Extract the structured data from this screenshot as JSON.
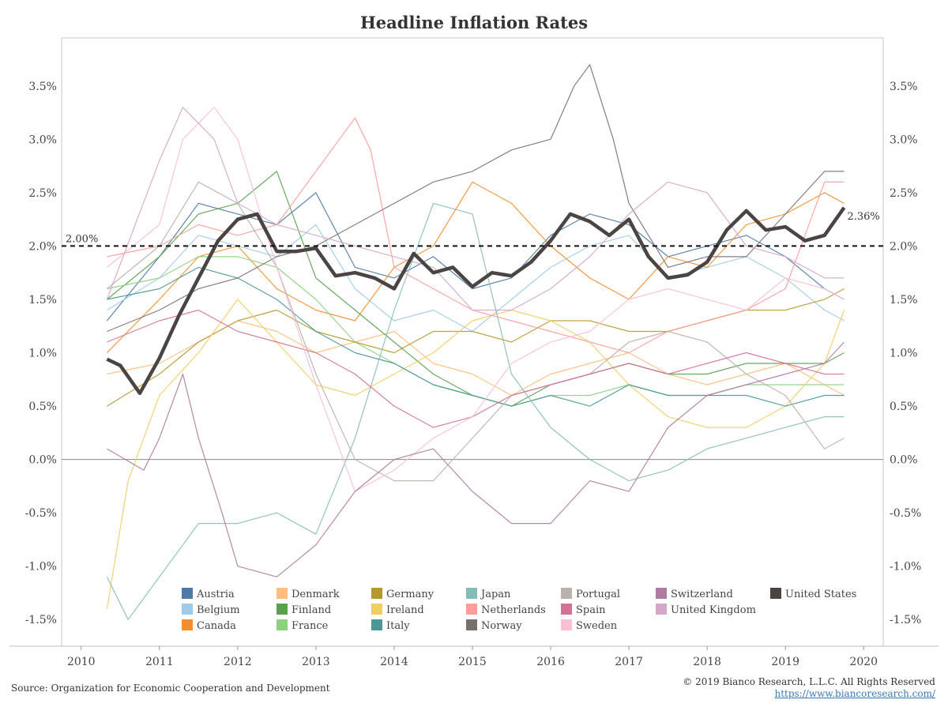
{
  "page": {
    "title": "Headline Inflation Rates",
    "source": "Source: Organization for Economic Cooperation and Development",
    "copyright": "© 2019 Bianco Research, L.L.C. All Rights Reserved",
    "url": "https://www.biancoresearch.com/"
  },
  "chart_data": {
    "type": "line",
    "title": "Headline Inflation Rates",
    "xlabel": "",
    "ylabel": "",
    "x_ticks": [
      "2010",
      "2011",
      "2012",
      "2013",
      "2014",
      "2015",
      "2016",
      "2017",
      "2018",
      "2019",
      "2020"
    ],
    "y_ticks": [
      "3.5%",
      "3.0%",
      "2.5%",
      "2.0%",
      "1.5%",
      "1.0%",
      "0.5%",
      "0.0%",
      "-0.5%",
      "-1.0%",
      "-1.5%"
    ],
    "xlim": [
      2009.75,
      2020.25
    ],
    "ylim": [
      -1.75,
      3.95
    ],
    "y_axis_duplicated_on_right": true,
    "reference_line": {
      "y": 2.0,
      "label": "2.00%",
      "style": "dashed"
    },
    "zero_line": {
      "y": 0.0
    },
    "end_label": "2.36%",
    "legend_position": "bottom",
    "legend": [
      "Austria",
      "Belgium",
      "Canada",
      "Denmark",
      "Finland",
      "France",
      "Germany",
      "Ireland",
      "Italy",
      "Japan",
      "Netherlands",
      "Norway",
      "Portugal",
      "Spain",
      "Sweden",
      "Switzerland",
      "United Kingdom",
      "United States"
    ],
    "series": [
      {
        "name": "Austria",
        "color": "#4e79a7",
        "x": [
          2010.33,
          2011.0,
          2011.5,
          2012.0,
          2012.5,
          2013.0,
          2013.5,
          2014.0,
          2014.5,
          2015.0,
          2015.5,
          2016.0,
          2016.5,
          2017.0,
          2017.5,
          2018.0,
          2018.5,
          2019.0,
          2019.5,
          2019.75
        ],
        "y": [
          1.3,
          1.9,
          2.4,
          2.3,
          2.2,
          2.5,
          1.8,
          1.7,
          1.9,
          1.6,
          1.7,
          2.1,
          2.3,
          2.2,
          1.9,
          2.0,
          2.1,
          1.9,
          1.6,
          1.5
        ]
      },
      {
        "name": "Belgium",
        "color": "#a0cbe8",
        "x": [
          2010.33,
          2011.0,
          2011.5,
          2012.0,
          2012.5,
          2013.0,
          2013.5,
          2014.0,
          2014.5,
          2015.0,
          2015.5,
          2016.0,
          2016.5,
          2017.0,
          2017.5,
          2018.0,
          2018.5,
          2019.0,
          2019.5,
          2019.75
        ],
        "y": [
          1.4,
          1.7,
          2.1,
          2.0,
          1.9,
          2.2,
          1.6,
          1.3,
          1.4,
          1.2,
          1.5,
          1.8,
          2.0,
          2.1,
          1.7,
          1.8,
          1.9,
          1.7,
          1.4,
          1.3
        ]
      },
      {
        "name": "Canada",
        "color": "#f28e2b",
        "x": [
          2010.33,
          2011.0,
          2011.5,
          2012.0,
          2012.5,
          2013.0,
          2013.5,
          2014.0,
          2014.5,
          2015.0,
          2015.5,
          2016.0,
          2016.5,
          2017.0,
          2017.5,
          2018.0,
          2018.5,
          2019.0,
          2019.5,
          2019.75
        ],
        "y": [
          1.0,
          1.5,
          1.9,
          2.0,
          1.6,
          1.4,
          1.3,
          1.8,
          2.0,
          2.6,
          2.4,
          2.0,
          1.7,
          1.5,
          1.9,
          1.8,
          2.2,
          2.3,
          2.5,
          2.4
        ]
      },
      {
        "name": "Denmark",
        "color": "#ffbe7d",
        "x": [
          2010.33,
          2011.0,
          2011.5,
          2012.0,
          2012.5,
          2013.0,
          2013.5,
          2014.0,
          2014.5,
          2015.0,
          2015.5,
          2016.0,
          2016.5,
          2017.0,
          2017.5,
          2018.0,
          2018.5,
          2019.0,
          2019.5,
          2019.75
        ],
        "y": [
          0.8,
          0.9,
          1.1,
          1.3,
          1.2,
          1.0,
          1.1,
          1.2,
          0.9,
          0.8,
          0.6,
          0.8,
          0.9,
          1.0,
          0.8,
          0.7,
          0.8,
          0.9,
          0.7,
          0.6
        ]
      },
      {
        "name": "Finland",
        "color": "#59a14f",
        "x": [
          2010.33,
          2011.0,
          2011.5,
          2012.0,
          2012.5,
          2013.0,
          2013.5,
          2014.0,
          2014.5,
          2015.0,
          2015.5,
          2016.0,
          2016.5,
          2017.0,
          2017.5,
          2018.0,
          2018.5,
          2019.0,
          2019.5,
          2019.75
        ],
        "y": [
          1.5,
          1.9,
          2.3,
          2.4,
          2.7,
          1.7,
          1.4,
          1.1,
          0.8,
          0.6,
          0.5,
          0.7,
          0.8,
          0.9,
          0.8,
          0.8,
          0.9,
          0.9,
          0.9,
          1.0
        ]
      },
      {
        "name": "France",
        "color": "#8cd17d",
        "x": [
          2010.33,
          2011.0,
          2011.5,
          2012.0,
          2012.5,
          2013.0,
          2013.5,
          2014.0,
          2014.5,
          2015.0,
          2015.5,
          2016.0,
          2016.5,
          2017.0,
          2017.5,
          2018.0,
          2018.5,
          2019.0,
          2019.5,
          2019.75
        ],
        "y": [
          1.6,
          1.7,
          1.9,
          1.9,
          1.8,
          1.5,
          1.1,
          0.9,
          0.7,
          0.6,
          0.5,
          0.6,
          0.6,
          0.7,
          0.6,
          0.6,
          0.7,
          0.7,
          0.7,
          0.7
        ]
      },
      {
        "name": "Germany",
        "color": "#b6992d",
        "x": [
          2010.33,
          2011.0,
          2011.5,
          2012.0,
          2012.5,
          2013.0,
          2013.5,
          2014.0,
          2014.5,
          2015.0,
          2015.5,
          2016.0,
          2016.5,
          2017.0,
          2017.5,
          2018.0,
          2018.5,
          2019.0,
          2019.5,
          2019.75
        ],
        "y": [
          0.5,
          0.8,
          1.1,
          1.3,
          1.4,
          1.2,
          1.1,
          1.0,
          1.2,
          1.2,
          1.1,
          1.3,
          1.3,
          1.2,
          1.2,
          1.3,
          1.4,
          1.4,
          1.5,
          1.6
        ]
      },
      {
        "name": "Ireland",
        "color": "#f1ce63",
        "x": [
          2010.33,
          2010.6,
          2011.0,
          2011.5,
          2012.0,
          2012.5,
          2013.0,
          2013.5,
          2014.0,
          2014.5,
          2015.0,
          2015.5,
          2016.0,
          2016.5,
          2017.0,
          2017.5,
          2018.0,
          2018.5,
          2019.0,
          2019.5,
          2019.75
        ],
        "y": [
          -1.4,
          -0.2,
          0.6,
          1.0,
          1.5,
          1.1,
          0.7,
          0.6,
          0.8,
          1.0,
          1.3,
          1.4,
          1.3,
          1.1,
          0.7,
          0.4,
          0.3,
          0.3,
          0.5,
          0.9,
          1.4
        ]
      },
      {
        "name": "Italy",
        "color": "#499894",
        "x": [
          2010.33,
          2011.0,
          2011.5,
          2012.0,
          2012.5,
          2013.0,
          2013.5,
          2014.0,
          2014.5,
          2015.0,
          2015.5,
          2016.0,
          2016.5,
          2017.0,
          2017.5,
          2018.0,
          2018.5,
          2019.0,
          2019.5,
          2019.75
        ],
        "y": [
          1.5,
          1.6,
          1.8,
          1.7,
          1.5,
          1.2,
          1.0,
          0.9,
          0.7,
          0.6,
          0.5,
          0.6,
          0.5,
          0.7,
          0.6,
          0.6,
          0.6,
          0.5,
          0.6,
          0.6
        ]
      },
      {
        "name": "Japan",
        "color": "#86bcb6",
        "x": [
          2010.33,
          2010.6,
          2011.0,
          2011.5,
          2012.0,
          2012.5,
          2013.0,
          2013.5,
          2014.0,
          2014.5,
          2015.0,
          2015.5,
          2016.0,
          2016.5,
          2017.0,
          2017.5,
          2018.0,
          2018.5,
          2019.0,
          2019.5,
          2019.75
        ],
        "y": [
          -1.1,
          -1.5,
          -1.1,
          -0.6,
          -0.6,
          -0.5,
          -0.7,
          0.2,
          1.4,
          2.4,
          2.3,
          0.8,
          0.3,
          0.0,
          -0.2,
          -0.1,
          0.1,
          0.2,
          0.3,
          0.4,
          0.4
        ]
      },
      {
        "name": "Netherlands",
        "color": "#ff9d9a",
        "x": [
          2010.33,
          2011.0,
          2011.5,
          2012.0,
          2012.5,
          2013.0,
          2013.5,
          2013.7,
          2014.0,
          2014.5,
          2015.0,
          2015.5,
          2016.0,
          2016.5,
          2017.0,
          2017.5,
          2018.0,
          2018.5,
          2019.0,
          2019.5,
          2019.75
        ],
        "y": [
          1.9,
          2.0,
          2.2,
          2.1,
          2.2,
          2.7,
          3.2,
          2.9,
          1.8,
          1.6,
          1.4,
          1.3,
          1.2,
          1.1,
          1.0,
          1.2,
          1.3,
          1.4,
          1.6,
          2.6,
          2.6
        ]
      },
      {
        "name": "Norway",
        "color": "#79706e",
        "x": [
          2010.33,
          2011.0,
          2011.5,
          2012.0,
          2012.5,
          2013.0,
          2013.5,
          2014.0,
          2014.5,
          2015.0,
          2015.5,
          2016.0,
          2016.3,
          2016.5,
          2016.8,
          2017.0,
          2017.5,
          2018.0,
          2018.5,
          2019.0,
          2019.5,
          2019.75
        ],
        "y": [
          1.2,
          1.4,
          1.6,
          1.7,
          1.9,
          2.0,
          2.2,
          2.4,
          2.6,
          2.7,
          2.9,
          3.0,
          3.5,
          3.7,
          3.0,
          2.4,
          1.8,
          1.9,
          1.9,
          2.3,
          2.7,
          2.7
        ]
      },
      {
        "name": "Portugal",
        "color": "#bab0ac",
        "x": [
          2010.33,
          2011.0,
          2011.5,
          2012.0,
          2012.5,
          2013.0,
          2013.5,
          2014.0,
          2014.5,
          2015.0,
          2015.5,
          2016.0,
          2016.5,
          2017.0,
          2017.5,
          2018.0,
          2018.5,
          2019.0,
          2019.5,
          2019.75
        ],
        "y": [
          1.6,
          2.0,
          2.6,
          2.4,
          1.8,
          0.8,
          0.0,
          -0.2,
          -0.2,
          0.2,
          0.6,
          0.7,
          0.8,
          1.1,
          1.2,
          1.1,
          0.8,
          0.6,
          0.1,
          0.2
        ]
      },
      {
        "name": "Spain",
        "color": "#d37295",
        "x": [
          2010.33,
          2011.0,
          2011.5,
          2012.0,
          2012.5,
          2013.0,
          2013.5,
          2014.0,
          2014.5,
          2015.0,
          2015.5,
          2016.0,
          2016.5,
          2017.0,
          2017.5,
          2018.0,
          2018.5,
          2019.0,
          2019.5,
          2019.75
        ],
        "y": [
          1.1,
          1.3,
          1.4,
          1.2,
          1.1,
          1.0,
          0.8,
          0.5,
          0.3,
          0.4,
          0.6,
          0.7,
          0.8,
          0.9,
          0.8,
          0.9,
          1.0,
          0.9,
          0.8,
          0.8
        ]
      },
      {
        "name": "Sweden",
        "color": "#fabfd2",
        "x": [
          2010.33,
          2011.0,
          2011.3,
          2011.7,
          2012.0,
          2012.5,
          2013.0,
          2013.5,
          2014.0,
          2014.5,
          2015.0,
          2015.5,
          2016.0,
          2016.5,
          2017.0,
          2017.5,
          2018.0,
          2018.5,
          2019.0,
          2019.5,
          2019.75
        ],
        "y": [
          1.8,
          2.2,
          3.0,
          3.3,
          3.0,
          1.8,
          0.7,
          -0.3,
          -0.1,
          0.2,
          0.4,
          0.9,
          1.1,
          1.2,
          1.5,
          1.6,
          1.5,
          1.4,
          1.7,
          1.6,
          1.5
        ]
      },
      {
        "name": "Switzerland",
        "color": "#b07aa1",
        "x": [
          2010.33,
          2010.8,
          2011.0,
          2011.3,
          2011.5,
          2011.8,
          2012.0,
          2012.5,
          2013.0,
          2013.5,
          2014.0,
          2014.5,
          2015.0,
          2015.5,
          2016.0,
          2016.5,
          2017.0,
          2017.5,
          2018.0,
          2018.5,
          2019.0,
          2019.5,
          2019.75
        ],
        "y": [
          0.1,
          -0.1,
          0.2,
          0.8,
          0.2,
          -0.5,
          -1.0,
          -1.1,
          -0.8,
          -0.3,
          0.0,
          0.1,
          -0.3,
          -0.6,
          -0.6,
          -0.2,
          -0.3,
          0.3,
          0.6,
          0.7,
          0.8,
          0.9,
          1.1
        ]
      },
      {
        "name": "United Kingdom",
        "color": "#d4a6c8",
        "x": [
          2010.33,
          2011.0,
          2011.3,
          2011.7,
          2012.0,
          2012.5,
          2013.0,
          2013.5,
          2014.0,
          2014.5,
          2015.0,
          2015.5,
          2016.0,
          2016.5,
          2017.0,
          2017.5,
          2018.0,
          2018.5,
          2019.0,
          2019.5,
          2019.75
        ],
        "y": [
          1.5,
          2.8,
          3.3,
          3.0,
          2.4,
          2.2,
          2.1,
          2.0,
          1.9,
          1.8,
          1.4,
          1.4,
          1.6,
          1.9,
          2.3,
          2.6,
          2.5,
          2.0,
          1.9,
          1.7,
          1.7
        ]
      },
      {
        "name": "United States",
        "color": "#4a4442",
        "x": [
          2010.33,
          2010.5,
          2010.75,
          2011.0,
          2011.25,
          2011.5,
          2011.75,
          2012.0,
          2012.25,
          2012.5,
          2012.75,
          2013.0,
          2013.25,
          2013.5,
          2013.75,
          2014.0,
          2014.25,
          2014.5,
          2014.75,
          2015.0,
          2015.25,
          2015.5,
          2015.75,
          2016.0,
          2016.25,
          2016.5,
          2016.75,
          2017.0,
          2017.25,
          2017.5,
          2017.75,
          2018.0,
          2018.25,
          2018.5,
          2018.75,
          2019.0,
          2019.25,
          2019.5,
          2019.75
        ],
        "y": [
          0.94,
          0.88,
          0.62,
          0.95,
          1.35,
          1.7,
          2.05,
          2.25,
          2.3,
          1.95,
          1.95,
          1.98,
          1.72,
          1.75,
          1.7,
          1.6,
          1.93,
          1.75,
          1.8,
          1.62,
          1.75,
          1.72,
          1.85,
          2.05,
          2.3,
          2.23,
          2.1,
          2.25,
          1.9,
          1.7,
          1.73,
          1.85,
          2.15,
          2.33,
          2.15,
          2.18,
          2.05,
          2.1,
          2.36
        ]
      }
    ]
  }
}
